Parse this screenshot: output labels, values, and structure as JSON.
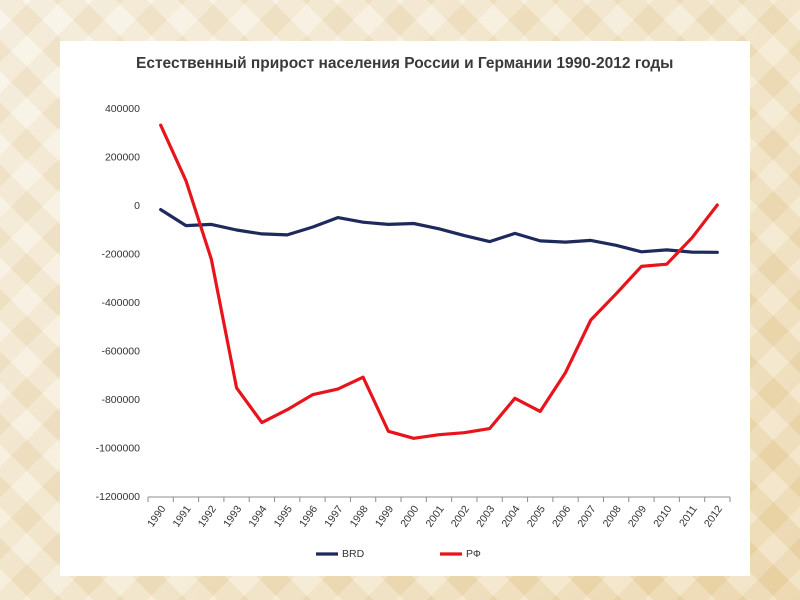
{
  "chart_data": {
    "type": "line",
    "title": "Естественный прирост населения России и Германии 1990-2012 годы",
    "xlabel": "",
    "ylabel": "",
    "categories": [
      "1990",
      "1991",
      "1992",
      "1993",
      "1994",
      "1995",
      "1996",
      "1997",
      "1998",
      "1999",
      "2000",
      "2001",
      "2002",
      "2003",
      "2004",
      "2005",
      "2006",
      "2007",
      "2008",
      "2009",
      "2010",
      "2011",
      "2012"
    ],
    "ylim": [
      -1200000,
      400000
    ],
    "yticks": [
      400000,
      200000,
      0,
      -200000,
      -400000,
      -600000,
      -800000,
      -1000000,
      -1200000
    ],
    "ytick_labels": [
      "400000",
      "200000",
      "0",
      "-200000",
      "-400000",
      "-600000",
      "-800000",
      "-1000000",
      "-1200000"
    ],
    "grid": false,
    "legend_position": "bottom",
    "series": [
      {
        "name": "BRD",
        "color": "#1f2a5c",
        "values": [
          -15000,
          -81000,
          -76000,
          -99000,
          -115000,
          -119000,
          -87000,
          -48000,
          -67000,
          -76000,
          -72000,
          -94000,
          -122000,
          -147000,
          -113000,
          -144000,
          -149000,
          -142000,
          -162000,
          -189000,
          -181000,
          -190000,
          -191000
        ]
      },
      {
        "name": "РФ",
        "color": "#e8141b",
        "values": [
          333000,
          104000,
          -219000,
          -750000,
          -893000,
          -840000,
          -778000,
          -755000,
          -706000,
          -929000,
          -958000,
          -943000,
          -935000,
          -918000,
          -793000,
          -847000,
          -687000,
          -470000,
          -362000,
          -249000,
          -240000,
          -131000,
          4000
        ]
      }
    ]
  }
}
